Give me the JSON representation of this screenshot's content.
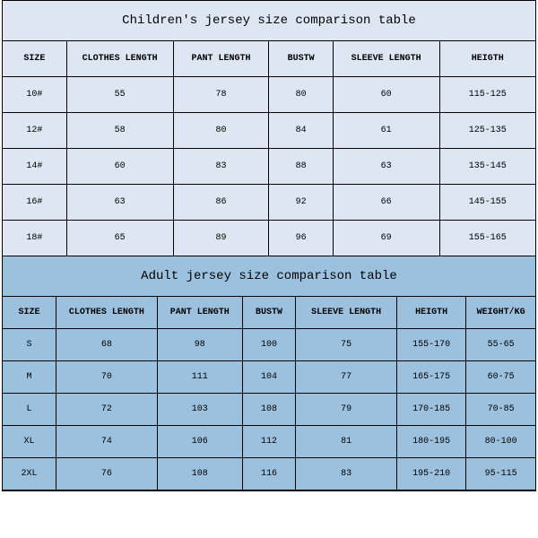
{
  "children_table": {
    "title": "Children's jersey size comparison table",
    "title_bg": "#dde6f2",
    "header_bg": "#dde6f2",
    "row_bg": "#dde6f2",
    "columns": [
      "SIZE",
      "CLOTHES LENGTH",
      "PANT LENGTH",
      "BUSTW",
      "SLEEVE LENGTH",
      "HEIGTH"
    ],
    "col_widths": [
      "12%",
      "20%",
      "18%",
      "12%",
      "20%",
      "18%"
    ],
    "rows": [
      [
        "10#",
        "55",
        "78",
        "80",
        "60",
        "115-125"
      ],
      [
        "12#",
        "58",
        "80",
        "84",
        "61",
        "125-135"
      ],
      [
        "14#",
        "60",
        "83",
        "88",
        "63",
        "135-145"
      ],
      [
        "16#",
        "63",
        "86",
        "92",
        "66",
        "145-155"
      ],
      [
        "18#",
        "65",
        "89",
        "96",
        "69",
        "155-165"
      ]
    ]
  },
  "adult_table": {
    "title": "Adult jersey size comparison table",
    "title_bg": "#9cc1de",
    "header_bg": "#9cc1de",
    "row_bg": "#9cc1de",
    "columns": [
      "SIZE",
      "CLOTHES LENGTH",
      "PANT LENGTH",
      "BUSTW",
      "SLEEVE LENGTH",
      "HEIGTH",
      "WEIGHT/KG"
    ],
    "col_widths": [
      "10%",
      "19%",
      "16%",
      "10%",
      "19%",
      "13%",
      "13%"
    ],
    "rows": [
      [
        "S",
        "68",
        "98",
        "100",
        "75",
        "155-170",
        "55-65"
      ],
      [
        "M",
        "70",
        "111",
        "104",
        "77",
        "165-175",
        "60-75"
      ],
      [
        "L",
        "72",
        "103",
        "108",
        "79",
        "170-185",
        "70-85"
      ],
      [
        "XL",
        "74",
        "106",
        "112",
        "81",
        "180-195",
        "80-100"
      ],
      [
        "2XL",
        "76",
        "108",
        "116",
        "83",
        "195-210",
        "95-115"
      ]
    ]
  }
}
